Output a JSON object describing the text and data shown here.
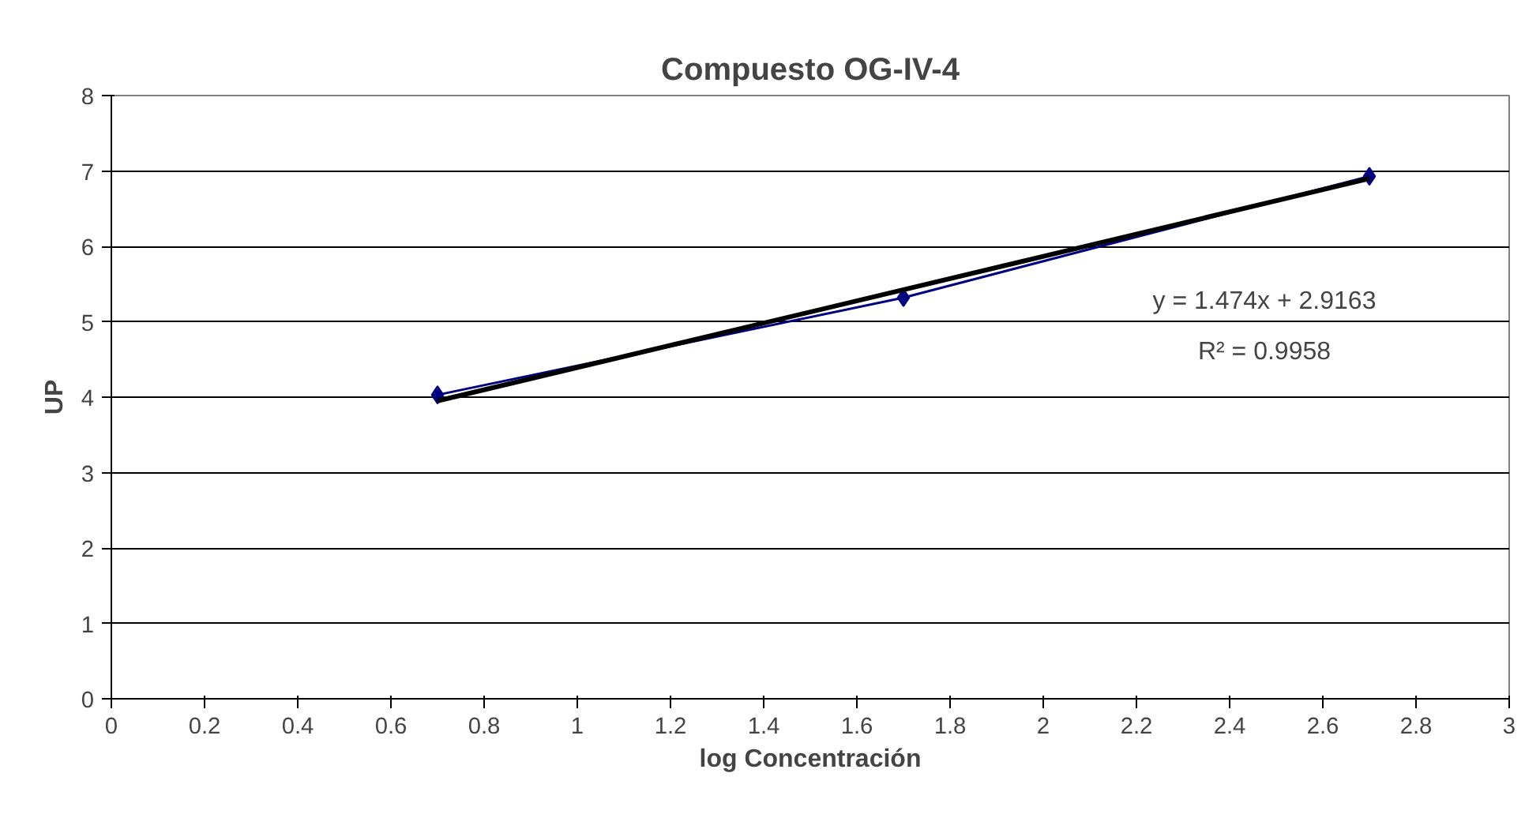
{
  "chart_data": {
    "type": "line",
    "title": "Compuesto OG-IV-4",
    "xlabel": "log Concentración",
    "ylabel": "UP",
    "xlim": [
      0,
      3
    ],
    "xticks": [
      0,
      0.2,
      0.4,
      0.6,
      0.8,
      1,
      1.2,
      1.4,
      1.6,
      1.8,
      2,
      2.2,
      2.4,
      2.6,
      2.8,
      3
    ],
    "ylim": [
      0,
      8
    ],
    "yticks": [
      0,
      1,
      2,
      3,
      4,
      5,
      6,
      7,
      8
    ],
    "grid": "y",
    "series": [
      {
        "color": "#000080",
        "marker": "diamond",
        "x": [
          0.7,
          1.7,
          2.7
        ],
        "values": [
          4.03,
          5.32,
          6.93
        ]
      },
      {
        "color": "#000000",
        "marker": "none",
        "x": [
          0.7,
          2.7
        ],
        "values": [
          3.95,
          6.9
        ]
      }
    ],
    "annotations": [
      "y = 1.474x + 2.9163",
      "R² = 0.9958"
    ]
  }
}
